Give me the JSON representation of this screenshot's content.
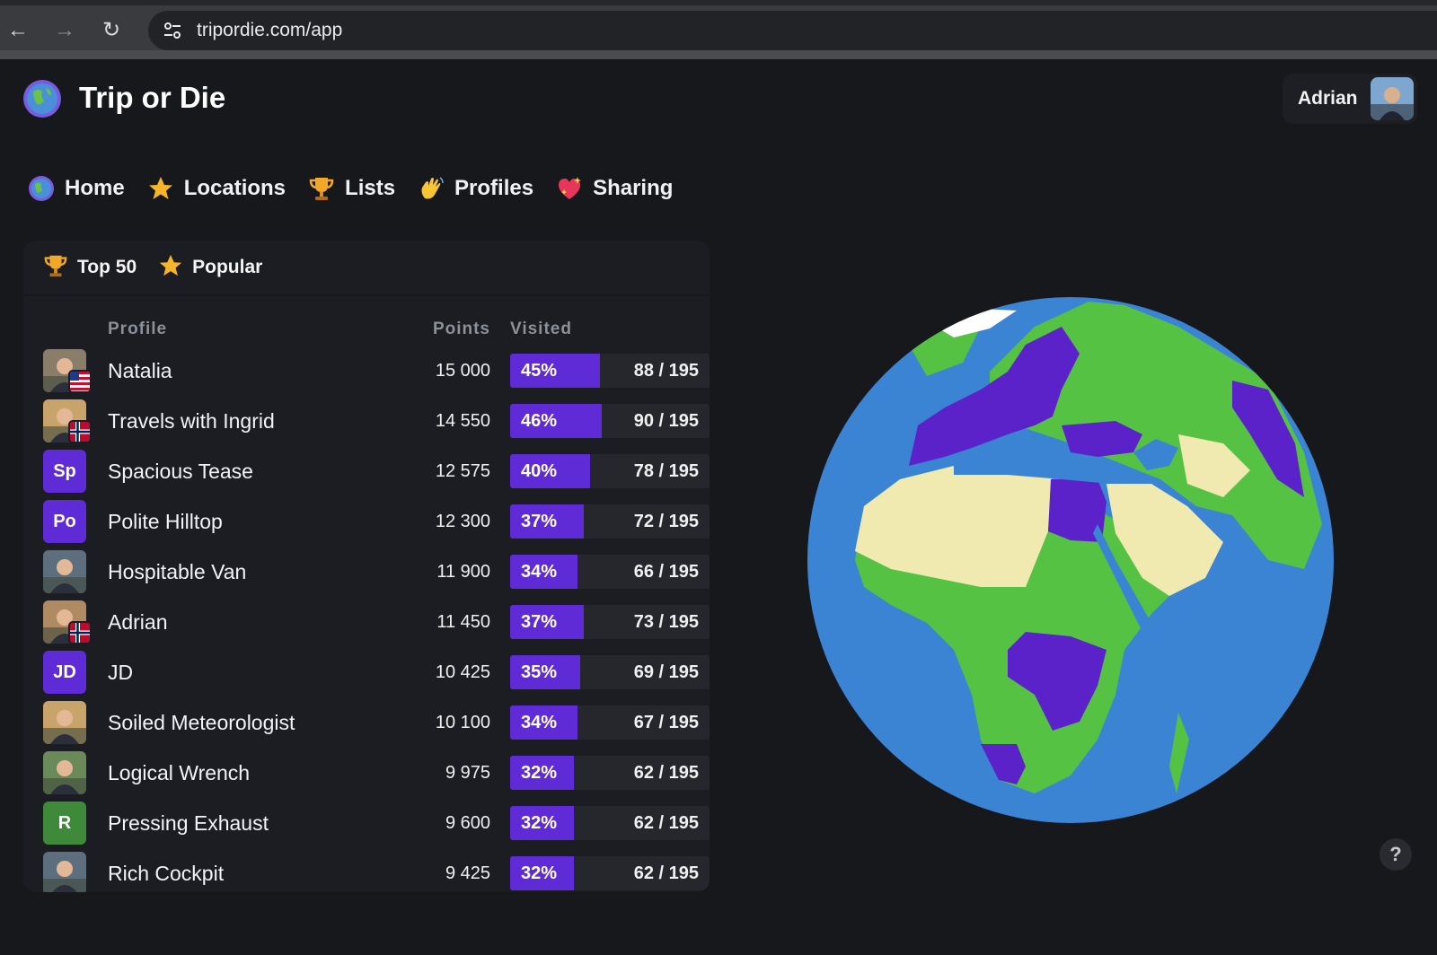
{
  "browser": {
    "url": "tripordie.com/app"
  },
  "header": {
    "title": "Trip or Die",
    "user_name": "Adrian"
  },
  "nav": [
    {
      "label": "Home",
      "icon": "globe-icon"
    },
    {
      "label": "Locations",
      "icon": "star-icon"
    },
    {
      "label": "Lists",
      "icon": "trophy-icon"
    },
    {
      "label": "Profiles",
      "icon": "waving-hand-icon"
    },
    {
      "label": "Sharing",
      "icon": "sparkling-heart-icon"
    }
  ],
  "leaderboard": {
    "tabs": [
      {
        "label": "Top 50",
        "icon": "trophy-icon"
      },
      {
        "label": "Popular",
        "icon": "star-icon"
      }
    ],
    "columns": {
      "profile": "Profile",
      "points": "Points",
      "visited": "Visited"
    },
    "rows": [
      {
        "name": "Natalia",
        "points": "15 000",
        "percent": "45%",
        "visited": "88 / 195",
        "fraction": 0.45,
        "avatar": "photo",
        "flag": "us"
      },
      {
        "name": "Travels with Ingrid",
        "points": "14 550",
        "percent": "46%",
        "visited": "90 / 195",
        "fraction": 0.46,
        "avatar": "photo",
        "flag": "no"
      },
      {
        "name": "Spacious Tease",
        "points": "12 575",
        "percent": "40%",
        "visited": "78 / 195",
        "fraction": 0.4,
        "initials": "Sp",
        "avatar_color": "#5f2bd6"
      },
      {
        "name": "Polite Hilltop",
        "points": "12 300",
        "percent": "37%",
        "visited": "72 / 195",
        "fraction": 0.37,
        "initials": "Po",
        "avatar_color": "#5f2bd6"
      },
      {
        "name": "Hospitable Van",
        "points": "11 900",
        "percent": "34%",
        "visited": "66 / 195",
        "fraction": 0.34,
        "avatar": "photo"
      },
      {
        "name": "Adrian",
        "points": "11 450",
        "percent": "37%",
        "visited": "73 / 195",
        "fraction": 0.37,
        "avatar": "photo",
        "flag": "no"
      },
      {
        "name": "JD",
        "points": "10 425",
        "percent": "35%",
        "visited": "69 / 195",
        "fraction": 0.35,
        "initials": "JD",
        "avatar_color": "#5f2bd6"
      },
      {
        "name": "Soiled Meteorologist",
        "points": "10 100",
        "percent": "34%",
        "visited": "67 / 195",
        "fraction": 0.34,
        "avatar": "photo"
      },
      {
        "name": "Logical Wrench",
        "points": "9 975",
        "percent": "32%",
        "visited": "62 / 195",
        "fraction": 0.32,
        "avatar": "photo"
      },
      {
        "name": "Pressing Exhaust",
        "points": "9 600",
        "percent": "32%",
        "visited": "62 / 195",
        "fraction": 0.32,
        "initials": "R",
        "avatar_color": "#3f8a3a"
      },
      {
        "name": "Rich Cockpit",
        "points": "9 425",
        "percent": "32%",
        "visited": "62 / 195",
        "fraction": 0.32,
        "avatar": "photo"
      }
    ]
  },
  "map": {
    "colors": {
      "ocean": "#3b84d4",
      "visited": "#5a22c8",
      "land": "#56c244",
      "desert": "#f0eab0"
    }
  },
  "help_label": "?"
}
